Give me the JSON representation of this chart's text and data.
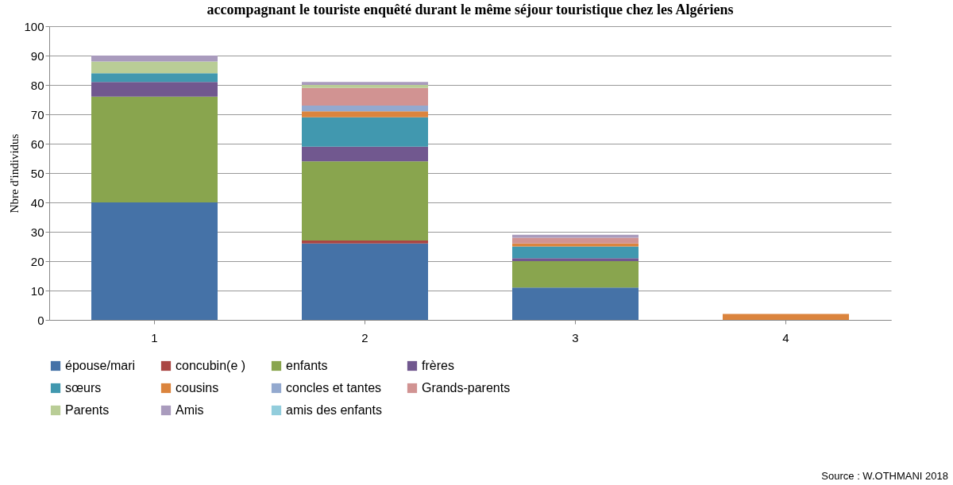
{
  "chart_data": {
    "type": "bar",
    "stacked": true,
    "title": "accompagnant le touriste enquêté durant le même séjour touristique chez les Algériens",
    "ylabel": "Nbre d'individus",
    "categories": [
      "1",
      "2",
      "3",
      "4"
    ],
    "ylim": [
      0,
      100
    ],
    "yticks": [
      0,
      10,
      20,
      30,
      40,
      50,
      60,
      70,
      80,
      90,
      100
    ],
    "grid": "y",
    "legend": "bottom",
    "annotations": [
      "Source : W.OTHMANI 2018"
    ],
    "series": [
      {
        "name": "épouse/mari",
        "color": "#4572a7",
        "values": [
          40,
          26,
          11,
          null
        ]
      },
      {
        "name": "concubin(e )",
        "color": "#aa4643",
        "values": [
          null,
          1,
          null,
          null
        ]
      },
      {
        "name": "enfants",
        "color": "#89a54e",
        "values": [
          36,
          27,
          9,
          null
        ]
      },
      {
        "name": "frères",
        "color": "#71588f",
        "values": [
          5,
          5,
          1,
          null
        ]
      },
      {
        "name": "sœurs",
        "color": "#4198af",
        "values": [
          3,
          10,
          4,
          null
        ]
      },
      {
        "name": "cousins",
        "color": "#db843d",
        "values": [
          null,
          2,
          1,
          2
        ]
      },
      {
        "name": "concles et tantes",
        "color": "#93a9cf",
        "values": [
          null,
          2,
          null,
          null
        ]
      },
      {
        "name": "Grands-parents",
        "color": "#d19392",
        "values": [
          null,
          6,
          2,
          null
        ]
      },
      {
        "name": "Parents",
        "color": "#b9cd96",
        "values": [
          4,
          1,
          null,
          null
        ]
      },
      {
        "name": "Amis",
        "color": "#a99bbd",
        "values": [
          2,
          1,
          1,
          null
        ]
      },
      {
        "name": "amis des enfants",
        "color": "#92cddc",
        "values": [
          null,
          null,
          null,
          null
        ]
      }
    ]
  }
}
